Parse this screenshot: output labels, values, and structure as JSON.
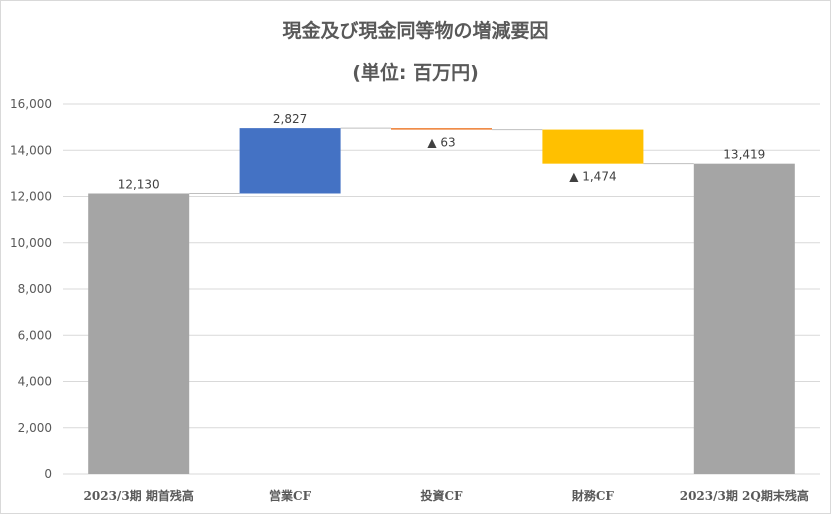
{
  "chart_data": {
    "type": "waterfall",
    "title": "現金及び現金同等物の増減要因",
    "subtitle": "(単位: 百万円)",
    "categories": [
      "2023/3期 期首残高",
      "営業CF",
      "投資CF",
      "財務CF",
      "2023/3期 2Q期末残高"
    ],
    "values": [
      12130,
      2827,
      -63,
      -1474,
      13419
    ],
    "kinds": [
      "total",
      "increase",
      "decrease",
      "decrease",
      "total"
    ],
    "data_labels": [
      "12,130",
      "2,827",
      "▲ 63",
      "▲ 1,474",
      "13,419"
    ],
    "y_ticks": [
      "0",
      "2,000",
      "4,000",
      "6,000",
      "8,000",
      "10,000",
      "12,000",
      "14,000",
      "16,000"
    ],
    "ylim": [
      0,
      16000
    ],
    "grid": true,
    "colors": {
      "total": "#a5a5a5",
      "increase": "#4472c4",
      "decrease_small": "#ed7d31",
      "decrease_large": "#ffc000",
      "gridline": "#d9d9d9",
      "text": "#595959"
    }
  }
}
